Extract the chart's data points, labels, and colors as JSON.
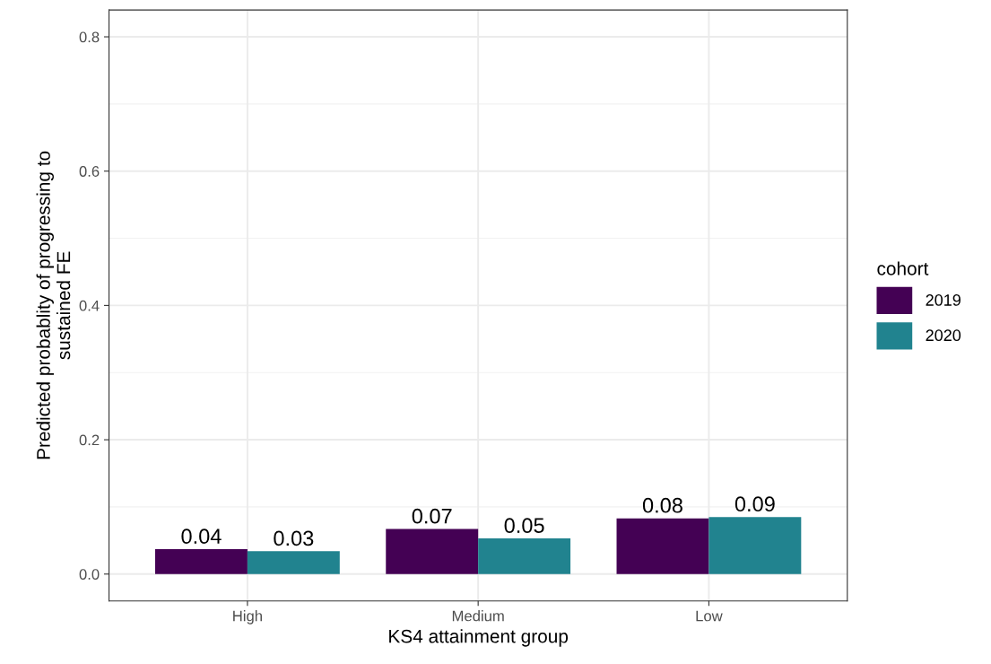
{
  "chart_data": {
    "type": "bar",
    "xlabel": "KS4 attainment group",
    "ylabel": "Predicted probablity of progressing to\nsustained FE",
    "legend_title": "cohort",
    "categories": [
      "High",
      "Medium",
      "Low"
    ],
    "series": [
      {
        "name": "2019",
        "color": "#440154",
        "values": [
          0.037,
          0.067,
          0.083
        ],
        "value_labels": [
          "0.04",
          "0.07",
          "0.08"
        ]
      },
      {
        "name": "2020",
        "color": "#21838f",
        "values": [
          0.034,
          0.053,
          0.085
        ],
        "value_labels": [
          "0.03",
          "0.05",
          "0.09"
        ]
      }
    ],
    "ylim": [
      -0.04,
      0.84
    ],
    "yticks": [
      {
        "value": 0,
        "label": "0.0"
      },
      0.2,
      0.4,
      0.6,
      0.8
    ],
    "grid": true,
    "legend": "right"
  }
}
